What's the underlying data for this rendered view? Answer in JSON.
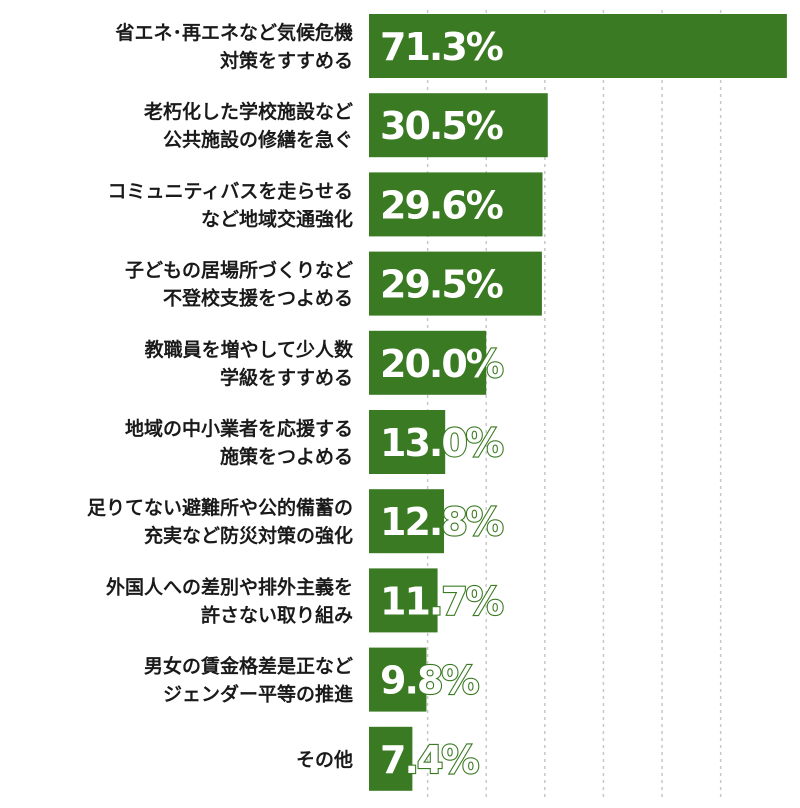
{
  "chart_data": {
    "type": "bar",
    "orientation": "horizontal",
    "categories": [
      [
        "省エネ･再エネなど気候危機",
        "対策をすすめる"
      ],
      [
        "老朽化した学校施設など",
        "公共施設の修繕を急ぐ"
      ],
      [
        "コミュニティバスを走らせる",
        "など地域交通強化"
      ],
      [
        "子どもの居場所づくりなど",
        "不登校支援をつよめる"
      ],
      [
        "教職員を増やして少人数",
        "学級をすすめる"
      ],
      [
        "地域の中小業者を応援する",
        "施策をつよめる"
      ],
      [
        "足りてない避難所や公的備蓄の",
        "充実など防災対策の強化"
      ],
      [
        "外国人への差別や排外主義を",
        "許さない取り組み"
      ],
      [
        "男女の賃金格差是正など",
        "ジェンダー平等の推進"
      ],
      [
        "その他"
      ]
    ],
    "values": [
      71.3,
      30.5,
      29.6,
      29.5,
      20.0,
      13.0,
      12.8,
      11.7,
      9.8,
      7.4
    ],
    "value_labels": [
      "71.3%",
      "30.5%",
      "29.6%",
      "29.5%",
      "20.0%",
      "13.0%",
      "12.8%",
      "11.7%",
      "9.8%",
      "7.4%"
    ],
    "xlim": [
      0,
      72
    ],
    "gridlines": [
      10,
      20,
      30,
      40,
      50,
      60
    ],
    "grid": true,
    "colors": {
      "bar": "#3a7a22",
      "grid": "#c8c8c8",
      "text": "#1a1a1a"
    }
  }
}
